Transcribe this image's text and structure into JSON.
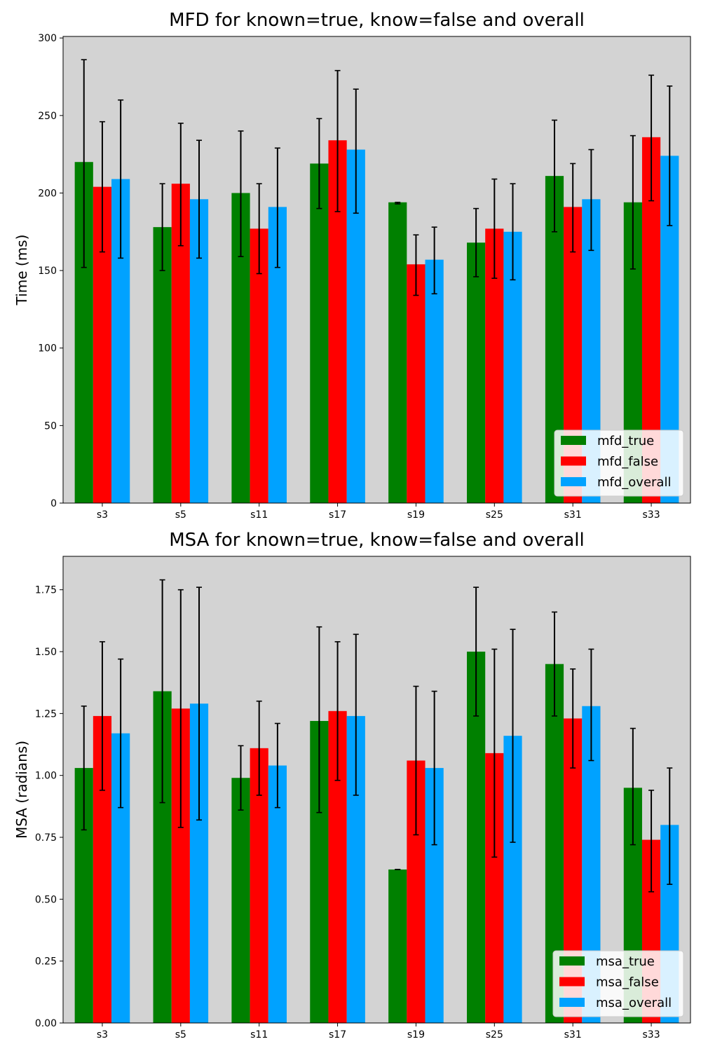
{
  "chart_data": [
    {
      "type": "bar",
      "title": "MFD for known=true, know=false and overall",
      "xlabel": "",
      "ylabel": "Time (ms)",
      "ylim": [
        0,
        301
      ],
      "yticks": [
        0,
        50,
        100,
        150,
        200,
        250,
        300
      ],
      "ytick_decimals": 0,
      "categories": [
        "s3",
        "s5",
        "s11",
        "s17",
        "s19",
        "s25",
        "s31",
        "s33"
      ],
      "background": "#d3d3d3",
      "legend_position": "lower right",
      "series": [
        {
          "name": "mfd_true",
          "color": "#008000",
          "values": [
            220,
            178,
            200,
            219,
            194,
            168,
            211,
            194
          ],
          "err_low": [
            152,
            150,
            159,
            190,
            193,
            146,
            175,
            151
          ],
          "err_high": [
            286,
            206,
            240,
            248,
            194,
            190,
            247,
            237
          ]
        },
        {
          "name": "mfd_false",
          "color": "#ff0000",
          "values": [
            204,
            206,
            177,
            234,
            154,
            177,
            191,
            236
          ],
          "err_low": [
            162,
            166,
            148,
            188,
            134,
            145,
            162,
            195
          ],
          "err_high": [
            246,
            245,
            206,
            279,
            173,
            209,
            219,
            276
          ]
        },
        {
          "name": "mfd_overall",
          "color": "#00a2ff",
          "values": [
            209,
            196,
            191,
            228,
            157,
            175,
            196,
            224
          ],
          "err_low": [
            158,
            158,
            152,
            187,
            135,
            144,
            163,
            179
          ],
          "err_high": [
            260,
            234,
            229,
            267,
            178,
            206,
            228,
            269
          ]
        }
      ]
    },
    {
      "type": "bar",
      "title": "MSA for known=true, know=false and overall",
      "xlabel": "",
      "ylabel": "MSA (radians)",
      "ylim": [
        0,
        1.885
      ],
      "yticks": [
        0.0,
        0.25,
        0.5,
        0.75,
        1.0,
        1.25,
        1.5,
        1.75
      ],
      "ytick_decimals": 2,
      "categories": [
        "s3",
        "s5",
        "s11",
        "s17",
        "s19",
        "s25",
        "s31",
        "s33"
      ],
      "background": "#d3d3d3",
      "legend_position": "lower right",
      "series": [
        {
          "name": "msa_true",
          "color": "#008000",
          "values": [
            1.03,
            1.34,
            0.99,
            1.22,
            0.62,
            1.5,
            1.45,
            0.95
          ],
          "err_low": [
            0.78,
            0.89,
            0.86,
            0.85,
            0.62,
            1.24,
            1.24,
            0.72
          ],
          "err_high": [
            1.28,
            1.79,
            1.12,
            1.6,
            0.62,
            1.76,
            1.66,
            1.19
          ]
        },
        {
          "name": "msa_false",
          "color": "#ff0000",
          "values": [
            1.24,
            1.27,
            1.11,
            1.26,
            1.06,
            1.09,
            1.23,
            0.74
          ],
          "err_low": [
            0.94,
            0.79,
            0.92,
            0.98,
            0.76,
            0.67,
            1.03,
            0.53
          ],
          "err_high": [
            1.54,
            1.75,
            1.3,
            1.54,
            1.36,
            1.51,
            1.43,
            0.94
          ]
        },
        {
          "name": "msa_overall",
          "color": "#00a2ff",
          "values": [
            1.17,
            1.29,
            1.04,
            1.24,
            1.03,
            1.16,
            1.28,
            0.8
          ],
          "err_low": [
            0.87,
            0.82,
            0.87,
            0.92,
            0.72,
            0.73,
            1.06,
            0.56
          ],
          "err_high": [
            1.47,
            1.76,
            1.21,
            1.57,
            1.34,
            1.59,
            1.51,
            1.03
          ]
        }
      ]
    }
  ]
}
